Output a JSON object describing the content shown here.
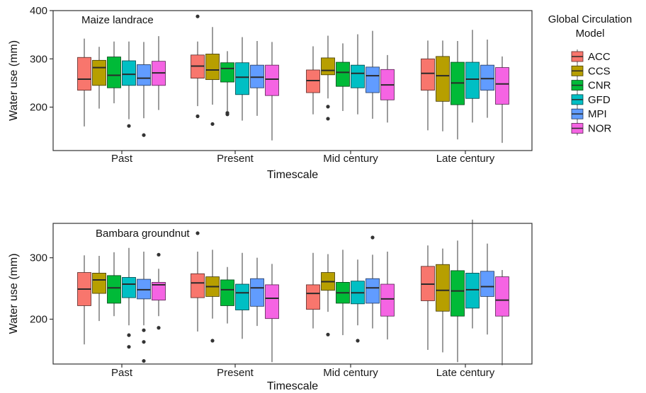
{
  "chart_data": [
    {
      "type": "box",
      "title": "Maize landrace",
      "xlabel": "Timescale",
      "ylabel": "Water use (mm)",
      "ylim": [
        110,
        400
      ],
      "yticks": [
        200,
        300,
        400
      ],
      "categories": [
        "Past",
        "Present",
        "Mid century",
        "Late century"
      ],
      "series": [
        {
          "name": "ACC",
          "boxes": [
            {
              "min": 160,
              "q1": 235,
              "median": 258,
              "q3": 303,
              "max": 342,
              "outliers": []
            },
            {
              "min": 202,
              "q1": 260,
              "median": 285,
              "q3": 308,
              "max": 336,
              "outliers": [
                388,
                181
              ]
            },
            {
              "min": 185,
              "q1": 230,
              "median": 255,
              "q3": 277,
              "max": 326,
              "outliers": []
            },
            {
              "min": 152,
              "q1": 235,
              "median": 270,
              "q3": 300,
              "max": 338,
              "outliers": []
            }
          ]
        },
        {
          "name": "CCS",
          "boxes": [
            {
              "min": 197,
              "q1": 245,
              "median": 282,
              "q3": 297,
              "max": 325,
              "outliers": []
            },
            {
              "min": 205,
              "q1": 257,
              "median": 277,
              "q3": 310,
              "max": 366,
              "outliers": [
                165
              ]
            },
            {
              "min": 218,
              "q1": 267,
              "median": 276,
              "q3": 302,
              "max": 348,
              "outliers": [
                201,
                176
              ]
            },
            {
              "min": 150,
              "q1": 212,
              "median": 265,
              "q3": 305,
              "max": 338,
              "outliers": []
            }
          ]
        },
        {
          "name": "CNR",
          "boxes": [
            {
              "min": 208,
              "q1": 240,
              "median": 266,
              "q3": 304,
              "max": 336,
              "outliers": []
            },
            {
              "min": 192,
              "q1": 252,
              "median": 280,
              "q3": 292,
              "max": 316,
              "outliers": [
                188,
                185
              ]
            },
            {
              "min": 192,
              "q1": 243,
              "median": 272,
              "q3": 293,
              "max": 332,
              "outliers": []
            },
            {
              "min": 133,
              "q1": 205,
              "median": 250,
              "q3": 293,
              "max": 337,
              "outliers": []
            }
          ]
        },
        {
          "name": "GFD",
          "boxes": [
            {
              "min": 175,
              "q1": 245,
              "median": 268,
              "q3": 296,
              "max": 336,
              "outliers": [
                161
              ]
            },
            {
              "min": 172,
              "q1": 226,
              "median": 262,
              "q3": 292,
              "max": 345,
              "outliers": []
            },
            {
              "min": 185,
              "q1": 240,
              "median": 270,
              "q3": 287,
              "max": 351,
              "outliers": []
            },
            {
              "min": 168,
              "q1": 218,
              "median": 258,
              "q3": 293,
              "max": 360,
              "outliers": []
            }
          ]
        },
        {
          "name": "MPI",
          "boxes": [
            {
              "min": 177,
              "q1": 245,
              "median": 260,
              "q3": 288,
              "max": 335,
              "outliers": [
                142
              ]
            },
            {
              "min": 182,
              "q1": 240,
              "median": 262,
              "q3": 287,
              "max": 337,
              "outliers": []
            },
            {
              "min": 176,
              "q1": 230,
              "median": 265,
              "q3": 283,
              "max": 358,
              "outliers": []
            },
            {
              "min": 178,
              "q1": 235,
              "median": 259,
              "q3": 287,
              "max": 340,
              "outliers": []
            }
          ]
        },
        {
          "name": "NOR",
          "boxes": [
            {
              "min": 194,
              "q1": 245,
              "median": 271,
              "q3": 295,
              "max": 347,
              "outliers": []
            },
            {
              "min": 131,
              "q1": 224,
              "median": 258,
              "q3": 287,
              "max": 335,
              "outliers": []
            },
            {
              "min": 168,
              "q1": 215,
              "median": 246,
              "q3": 278,
              "max": 308,
              "outliers": []
            },
            {
              "min": 126,
              "q1": 206,
              "median": 248,
              "q3": 282,
              "max": 305,
              "outliers": []
            }
          ]
        }
      ]
    },
    {
      "type": "box",
      "title": "Bambara groundnut",
      "xlabel": "Timescale",
      "ylabel": "Water use (mm)",
      "ylim": [
        127,
        356
      ],
      "yticks": [
        200,
        300
      ],
      "categories": [
        "Past",
        "Present",
        "Mid century",
        "Late century"
      ],
      "series": [
        {
          "name": "ACC",
          "boxes": [
            {
              "min": 159,
              "q1": 222,
              "median": 249,
              "q3": 276,
              "max": 304,
              "outliers": []
            },
            {
              "min": 180,
              "q1": 235,
              "median": 259,
              "q3": 274,
              "max": 310,
              "outliers": [
                340
              ]
            },
            {
              "min": 185,
              "q1": 216,
              "median": 242,
              "q3": 256,
              "max": 308,
              "outliers": []
            },
            {
              "min": 150,
              "q1": 230,
              "median": 257,
              "q3": 286,
              "max": 320,
              "outliers": []
            }
          ]
        },
        {
          "name": "CCS",
          "boxes": [
            {
              "min": 197,
              "q1": 242,
              "median": 264,
              "q3": 275,
              "max": 303,
              "outliers": []
            },
            {
              "min": 201,
              "q1": 237,
              "median": 253,
              "q3": 269,
              "max": 313,
              "outliers": [
                165
              ]
            },
            {
              "min": 212,
              "q1": 247,
              "median": 261,
              "q3": 276,
              "max": 306,
              "outliers": [
                175
              ]
            },
            {
              "min": 146,
              "q1": 213,
              "median": 247,
              "q3": 289,
              "max": 315,
              "outliers": []
            }
          ]
        },
        {
          "name": "CNR",
          "boxes": [
            {
              "min": 205,
              "q1": 226,
              "median": 251,
              "q3": 271,
              "max": 309,
              "outliers": []
            },
            {
              "min": 193,
              "q1": 222,
              "median": 248,
              "q3": 264,
              "max": 285,
              "outliers": []
            },
            {
              "min": 174,
              "q1": 226,
              "median": 243,
              "q3": 260,
              "max": 313,
              "outliers": []
            },
            {
              "min": 130,
              "q1": 205,
              "median": 246,
              "q3": 279,
              "max": 328,
              "outliers": []
            }
          ]
        },
        {
          "name": "GFD",
          "boxes": [
            {
              "min": 190,
              "q1": 235,
              "median": 257,
              "q3": 268,
              "max": 316,
              "outliers": [
                174,
                155
              ]
            },
            {
              "min": 168,
              "q1": 215,
              "median": 243,
              "q3": 257,
              "max": 308,
              "outliers": []
            },
            {
              "min": 190,
              "q1": 225,
              "median": 243,
              "q3": 262,
              "max": 297,
              "outliers": [
                165
              ]
            },
            {
              "min": 185,
              "q1": 218,
              "median": 248,
              "q3": 275,
              "max": 362,
              "outliers": []
            }
          ]
        },
        {
          "name": "MPI",
          "boxes": [
            {
              "min": 190,
              "q1": 233,
              "median": 248,
              "q3": 265,
              "max": 310,
              "outliers": [
                182,
                163,
                132
              ]
            },
            {
              "min": 189,
              "q1": 221,
              "median": 251,
              "q3": 266,
              "max": 300,
              "outliers": []
            },
            {
              "min": 185,
              "q1": 226,
              "median": 251,
              "q3": 266,
              "max": 305,
              "outliers": [
                333
              ]
            },
            {
              "min": 175,
              "q1": 237,
              "median": 253,
              "q3": 278,
              "max": 323,
              "outliers": []
            }
          ]
        },
        {
          "name": "NOR",
          "boxes": [
            {
              "min": 205,
              "q1": 231,
              "median": 256,
              "q3": 260,
              "max": 282,
              "outliers": [
                305,
                186
              ]
            },
            {
              "min": 130,
              "q1": 201,
              "median": 234,
              "q3": 256,
              "max": 290,
              "outliers": []
            },
            {
              "min": 167,
              "q1": 205,
              "median": 233,
              "q3": 257,
              "max": 310,
              "outliers": []
            },
            {
              "min": 125,
              "q1": 205,
              "median": 231,
              "q3": 269,
              "max": 280,
              "outliers": []
            }
          ]
        }
      ]
    }
  ],
  "legend": {
    "title_lines": [
      "Global Circulation",
      "Model"
    ],
    "placement": "right",
    "entries": [
      {
        "label": "ACC",
        "color": "#F8766D"
      },
      {
        "label": "CCS",
        "color": "#B79F00"
      },
      {
        "label": "CNR",
        "color": "#00BA38"
      },
      {
        "label": "GFD",
        "color": "#00BFC4"
      },
      {
        "label": "MPI",
        "color": "#619CFF"
      },
      {
        "label": "NOR",
        "color": "#F564E3"
      }
    ]
  }
}
